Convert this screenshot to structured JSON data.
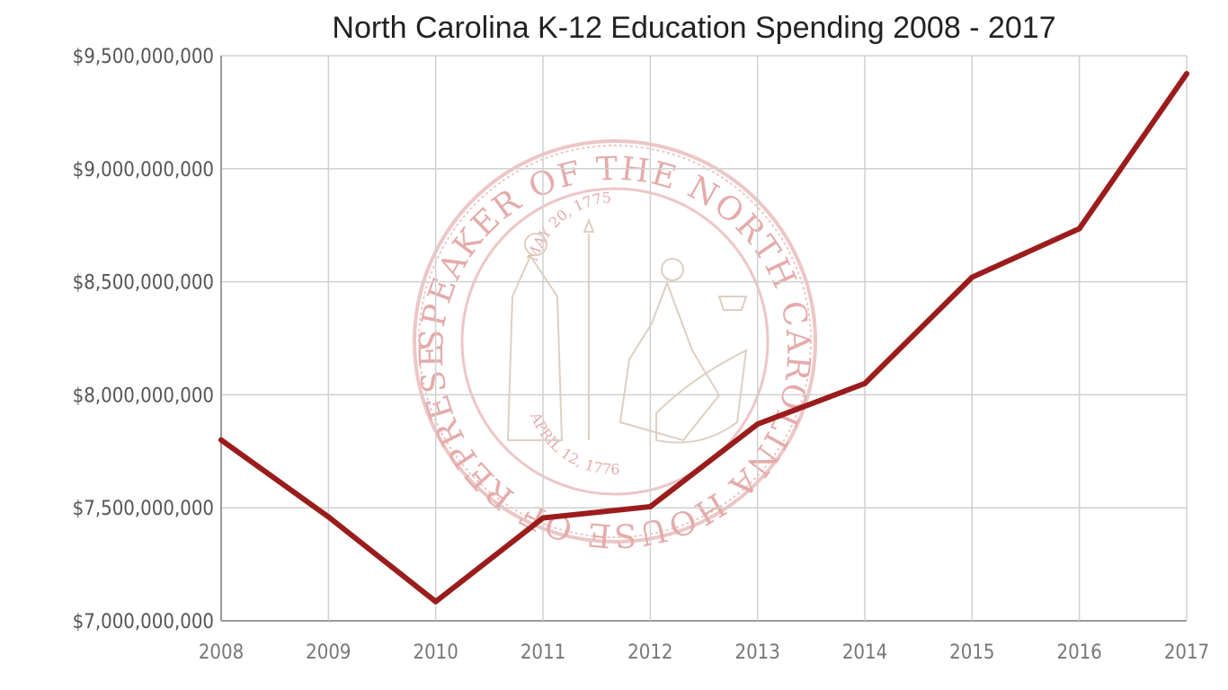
{
  "chart_data": {
    "type": "line",
    "title": "North Carolina K-12 Education Spending 2008 - 2017",
    "xlabel": "",
    "ylabel": "",
    "categories": [
      "2008",
      "2009",
      "2010",
      "2011",
      "2012",
      "2013",
      "2014",
      "2015",
      "2016",
      "2017"
    ],
    "values": [
      7800000000,
      7460000000,
      7085000000,
      7455000000,
      7505000000,
      7870000000,
      8050000000,
      8520000000,
      8735000000,
      9420000000
    ],
    "ylim": [
      7000000000,
      9500000000
    ],
    "yticks": [
      7000000000,
      7500000000,
      8000000000,
      8500000000,
      9000000000,
      9500000000
    ],
    "ytick_labels": [
      "$7,000,000,000",
      "$7,500,000,000",
      "$8,000,000,000",
      "$8,500,000,000",
      "$9,000,000,000",
      "$9,500,000,000"
    ],
    "grid": true,
    "line_color": "#9b1c1c"
  },
  "watermark": {
    "outer_text": "SPEAKER OF THE NORTH CAROLINA HOUSE OF REPRESENTATIVES",
    "top_date": "MAY 20, 1775",
    "bottom_date": "APRIL 12, 1776",
    "color": "#e3a3a3"
  }
}
